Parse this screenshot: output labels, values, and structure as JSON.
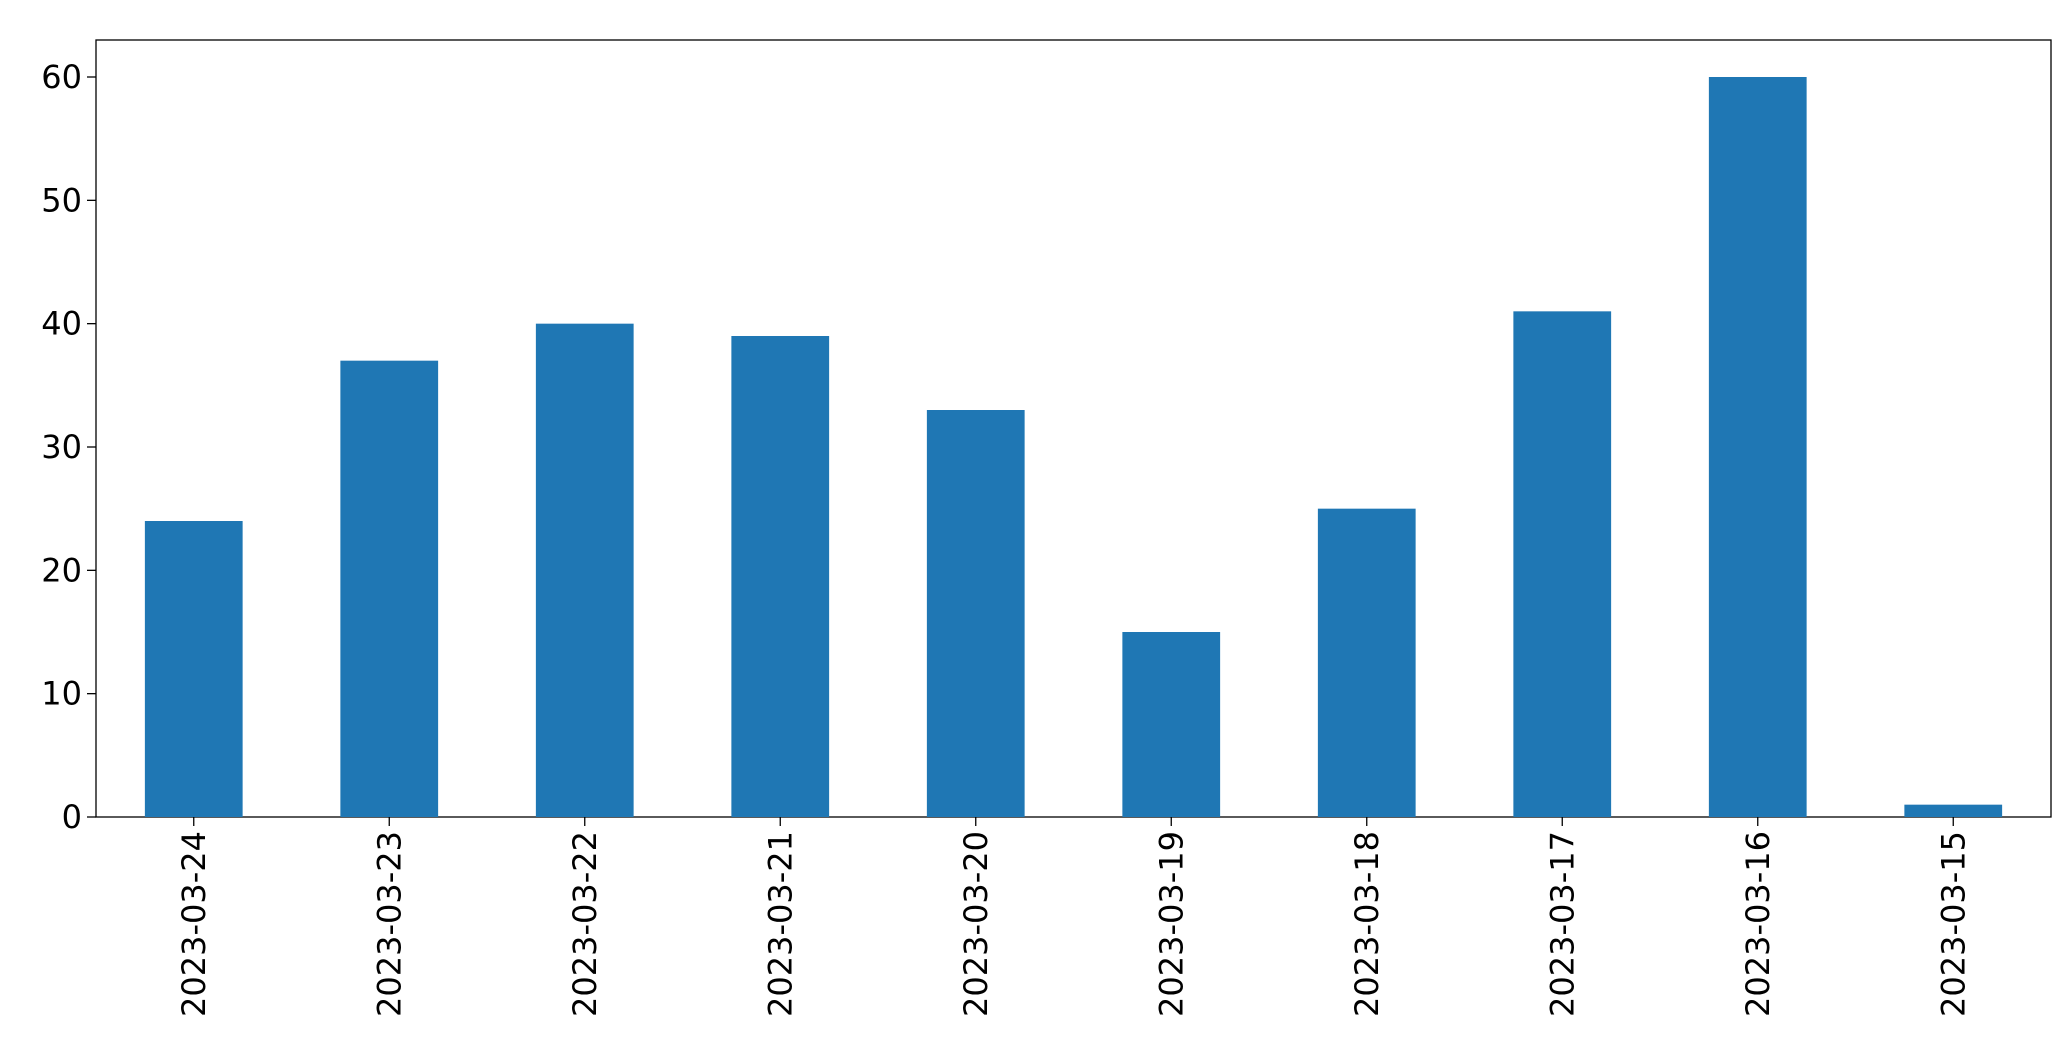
{
  "chart_data": {
    "type": "bar",
    "categories": [
      "2023-03-24",
      "2023-03-23",
      "2023-03-22",
      "2023-03-21",
      "2023-03-20",
      "2023-03-19",
      "2023-03-18",
      "2023-03-17",
      "2023-03-16",
      "2023-03-15"
    ],
    "values": [
      24,
      37,
      40,
      39,
      33,
      15,
      25,
      41,
      60,
      1
    ],
    "color": "#1f77b4",
    "ylim": [
      0,
      63
    ],
    "yticks": [
      0,
      10,
      20,
      30,
      40,
      50,
      60
    ],
    "grid": false
  }
}
